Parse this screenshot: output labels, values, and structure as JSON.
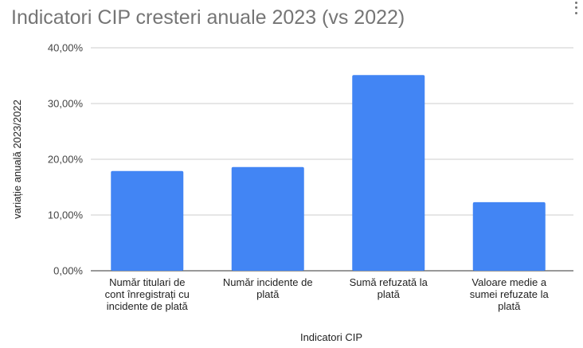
{
  "chart_data": {
    "type": "bar",
    "title": "Indicatori CIP cresteri anuale 2023 (vs 2022)",
    "xlabel": "Indicatori CIP",
    "ylabel": "variație anuală 2023/2022",
    "categories": [
      "Număr titulari de cont înregistrați cu incidente de plată",
      "Număr incidente de plată",
      "Sumă refuzată la plată",
      "Valoare medie a sumei refuzate la plată"
    ],
    "category_lines": [
      [
        "Număr titulari de",
        "cont înregistrați cu",
        "incidente de plată"
      ],
      [
        "Număr incidente de",
        "plată"
      ],
      [
        "Sumă refuzată la",
        "plată"
      ],
      [
        "Valoare medie a",
        "sumei refuzate la",
        "plată"
      ]
    ],
    "values": [
      17.9,
      18.6,
      35.1,
      12.3
    ],
    "ylim": [
      0,
      40
    ],
    "yticks": [
      0,
      10,
      20,
      30,
      40
    ],
    "ytick_labels": [
      "0,00%",
      "10,00%",
      "20,00%",
      "30,00%",
      "40,00%"
    ],
    "grid": true,
    "bar_color": "#4285f4"
  }
}
